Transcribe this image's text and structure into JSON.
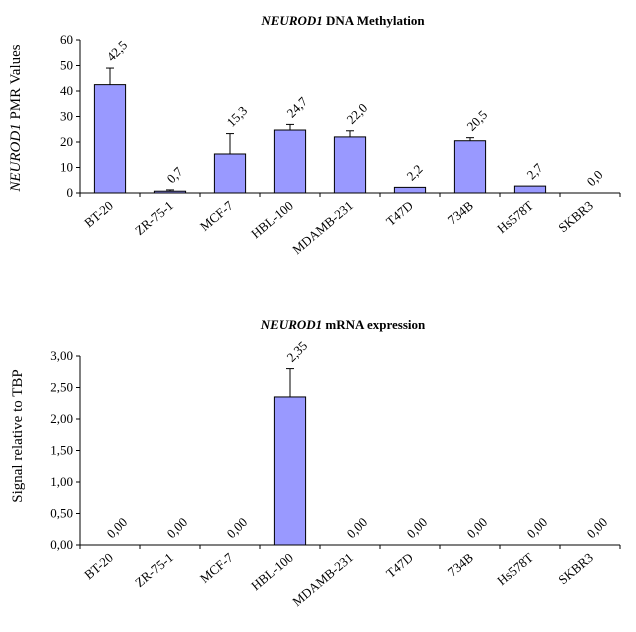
{
  "chart_data": [
    {
      "type": "bar",
      "title_italic": "NEUROD1",
      "title_rest": " DNA Methylation",
      "ylabel_italic": "NEUROD1",
      "ylabel_rest": " PMR Values",
      "xlabel": "",
      "categories": [
        "BT-20",
        "ZR-75-1",
        "MCF-7",
        "HBL-100",
        "MDAMB-231",
        "T47D",
        "734B",
        "Hs578T",
        "SKBR3"
      ],
      "values": [
        42.5,
        0.7,
        15.3,
        24.7,
        22.0,
        2.2,
        20.5,
        2.7,
        0.0
      ],
      "errors": [
        6.5,
        0.5,
        8.0,
        2.2,
        2.4,
        0,
        1.2,
        0,
        0
      ],
      "data_labels": [
        "42,5",
        "0,7",
        "15,3",
        "24,7",
        "22,0",
        "2,2",
        "20,5",
        "2,7",
        "0,0"
      ],
      "ylim": [
        0,
        60
      ],
      "yticks": [
        0,
        10,
        20,
        30,
        40,
        50,
        60
      ],
      "ytick_labels": [
        "0",
        "10",
        "20",
        "30",
        "40",
        "50",
        "60"
      ],
      "bar_color": "#9999ff",
      "grid": false,
      "legend": "none"
    },
    {
      "type": "bar",
      "title_italic": "NEUROD1",
      "title_rest": " mRNA expression",
      "ylabel_italic": "",
      "ylabel_rest": "Signal relative to TBP",
      "xlabel": "",
      "categories": [
        "BT-20",
        "ZR-75-1",
        "MCF-7",
        "HBL-100",
        "MDAMB-231",
        "T47D",
        "734B",
        "Hs578T",
        "SKBR3"
      ],
      "values": [
        0.0,
        0.0,
        0.0,
        2.35,
        0.0,
        0.0,
        0.0,
        0.0,
        0.0
      ],
      "errors": [
        0,
        0,
        0,
        0.45,
        0,
        0,
        0,
        0,
        0
      ],
      "data_labels": [
        "0,00",
        "0,00",
        "0,00",
        "2,35",
        "0,00",
        "0,00",
        "0,00",
        "0,00",
        "0,00"
      ],
      "ylim": [
        0,
        3
      ],
      "yticks": [
        0,
        0.5,
        1,
        1.5,
        2,
        2.5,
        3
      ],
      "ytick_labels": [
        "0,00",
        "0,50",
        "1,00",
        "1,50",
        "2,00",
        "2,50",
        "3,00"
      ],
      "bar_color": "#9999ff",
      "grid": false,
      "legend": "none"
    }
  ]
}
